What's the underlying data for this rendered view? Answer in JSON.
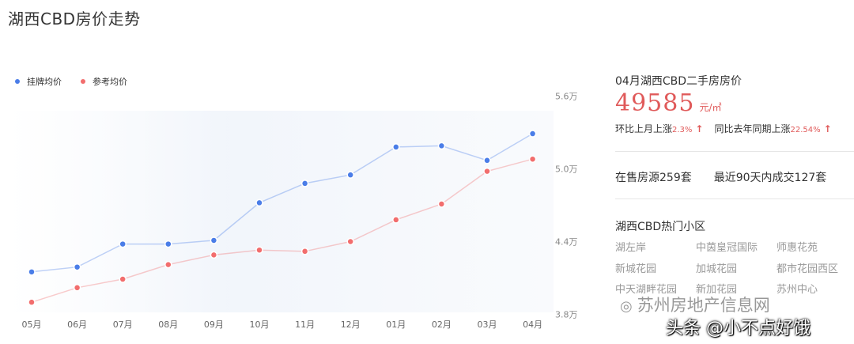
{
  "page": {
    "title": "湖西CBD房价走势"
  },
  "chart_data": {
    "type": "line",
    "categories": [
      "05月",
      "06月",
      "07月",
      "08月",
      "09月",
      "10月",
      "11月",
      "12月",
      "01月",
      "02月",
      "03月",
      "04月"
    ],
    "series": [
      {
        "name": "挂牌均价",
        "color": "#4a7de8",
        "values": [
          4.15,
          4.19,
          4.38,
          4.38,
          4.41,
          4.72,
          4.88,
          4.95,
          5.18,
          5.19,
          5.07,
          5.29
        ]
      },
      {
        "name": "参考均价",
        "color": "#f26d6d",
        "values": [
          3.9,
          4.02,
          4.09,
          4.21,
          4.29,
          4.33,
          4.32,
          4.4,
          4.58,
          4.71,
          4.98,
          5.08
        ]
      }
    ],
    "y_ticks": [
      "5.6万",
      "5.0万",
      "4.4万",
      "3.8万"
    ],
    "y_tick_values": [
      5.6,
      5.0,
      4.4,
      3.8
    ],
    "ylim": [
      3.8,
      5.6
    ],
    "unit": "万",
    "legend_position": "top-left",
    "grid": false
  },
  "summary": {
    "title": "04月湖西CBD二手房房价",
    "price": "49585",
    "price_unit": "元/㎡",
    "mom_label": "环比上月上涨",
    "mom_value": "2.3%",
    "yoy_label": "同比去年同期上涨",
    "yoy_value": "22.54%",
    "up_arrow": "↑"
  },
  "stats": {
    "on_sale": "在售房源259套",
    "recent_deals": "最近90天内成交127套"
  },
  "hot": {
    "title": "湖西CBD热门小区",
    "items": [
      "湖左岸",
      "中茵皇冠国际",
      "师惠花苑",
      "新城花园",
      "加城花园",
      "都市花园西区",
      "中天湖畔花园",
      "新加花园",
      "苏州中心"
    ]
  },
  "watermark": {
    "icon": "wechat-icon",
    "text": "苏州房地产信息网"
  },
  "author": {
    "text": "头条 @小不点好饿"
  },
  "colors": {
    "accent_red": "#e05a5a",
    "series_blue": "#4a7de8",
    "series_red": "#f26d6d"
  }
}
